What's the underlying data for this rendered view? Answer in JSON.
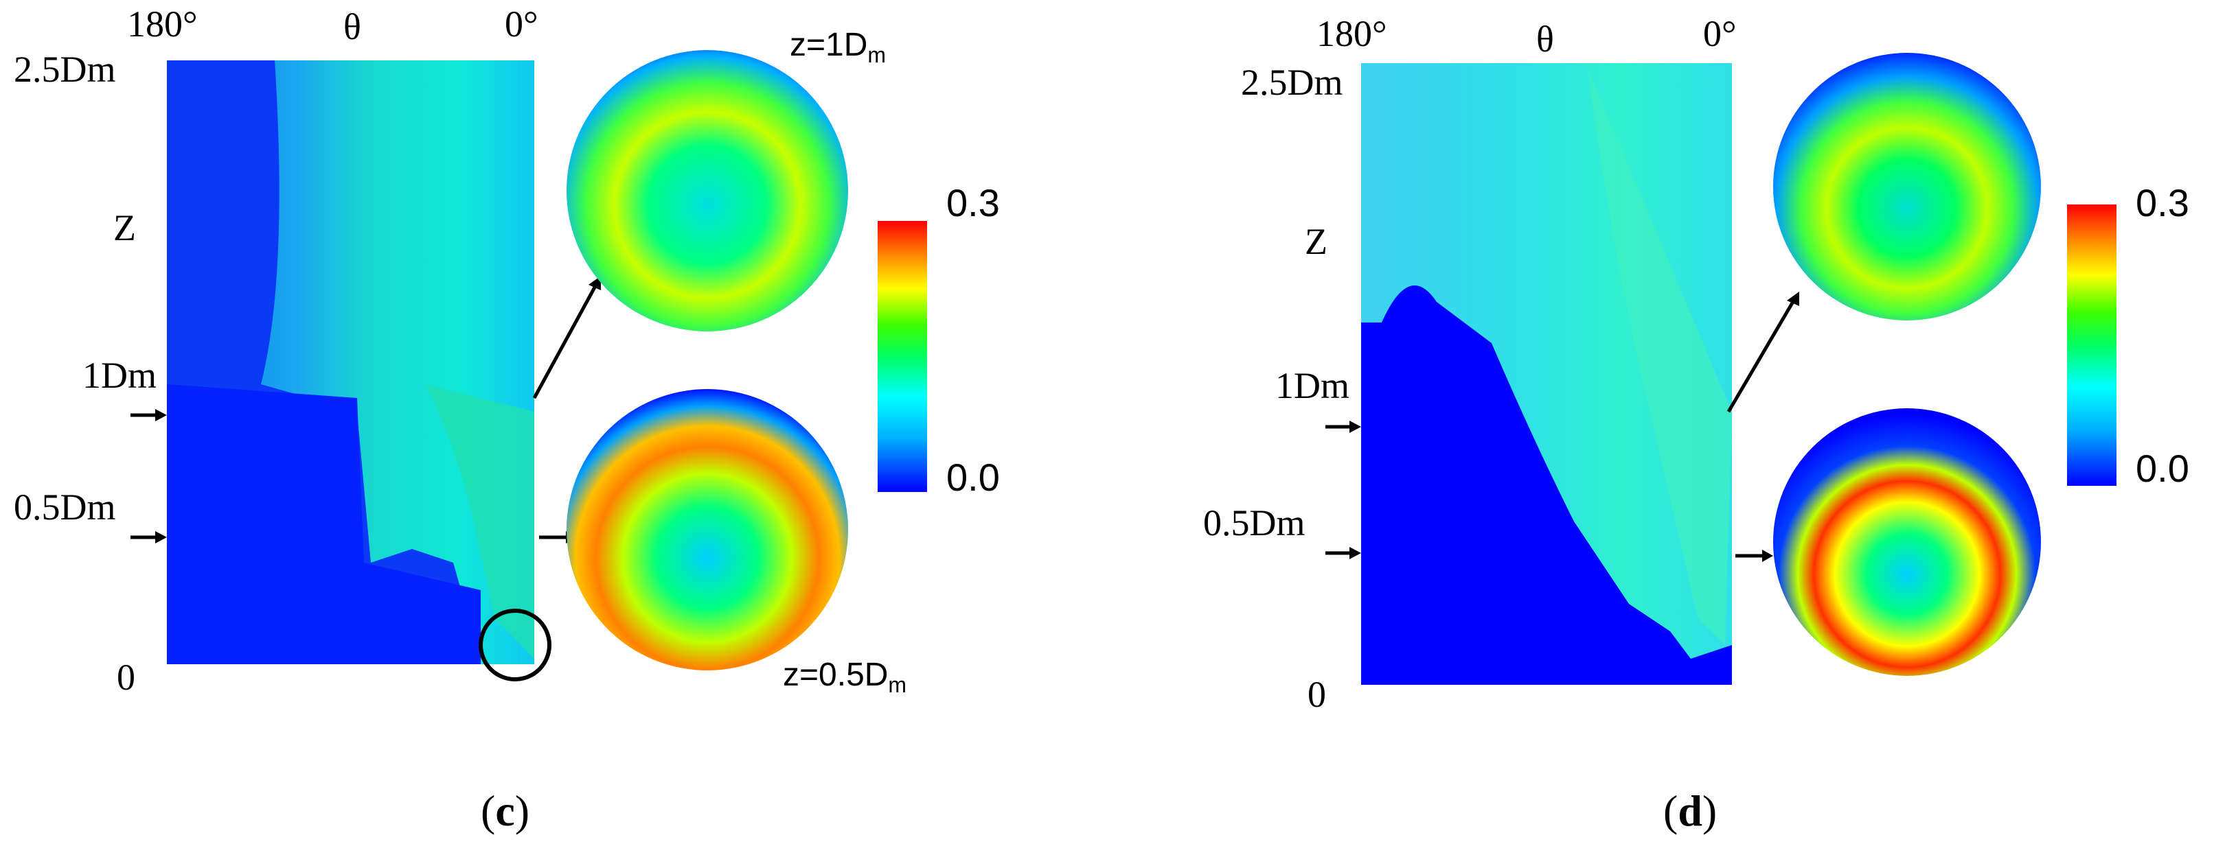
{
  "colorbar": {
    "max_label": "0.3",
    "min_label": "0.0",
    "colors": [
      "#0000ff",
      "#00a0ff",
      "#00ffff",
      "#00ff80",
      "#00ff00",
      "#c0ff00",
      "#ffff00",
      "#ff8000",
      "#ff0000"
    ]
  },
  "axes": {
    "theta_left": "180°",
    "theta_mid": "θ",
    "theta_right": "0°",
    "z_label": "Z",
    "z_25": "2.5Dm",
    "z_1": "1Dm",
    "z_05": "0.5Dm",
    "z_0": "0"
  },
  "panels": [
    {
      "id": "c",
      "caption_open": "(",
      "caption_letter": "c",
      "caption_close": ")",
      "slice_top": {
        "text": "z=1D",
        "sub": "m"
      },
      "slice_bottom": {
        "text": "z=0.5D",
        "sub": "m"
      }
    },
    {
      "id": "d",
      "caption_open": "(",
      "caption_letter": "d",
      "caption_close": ")"
    }
  ]
}
